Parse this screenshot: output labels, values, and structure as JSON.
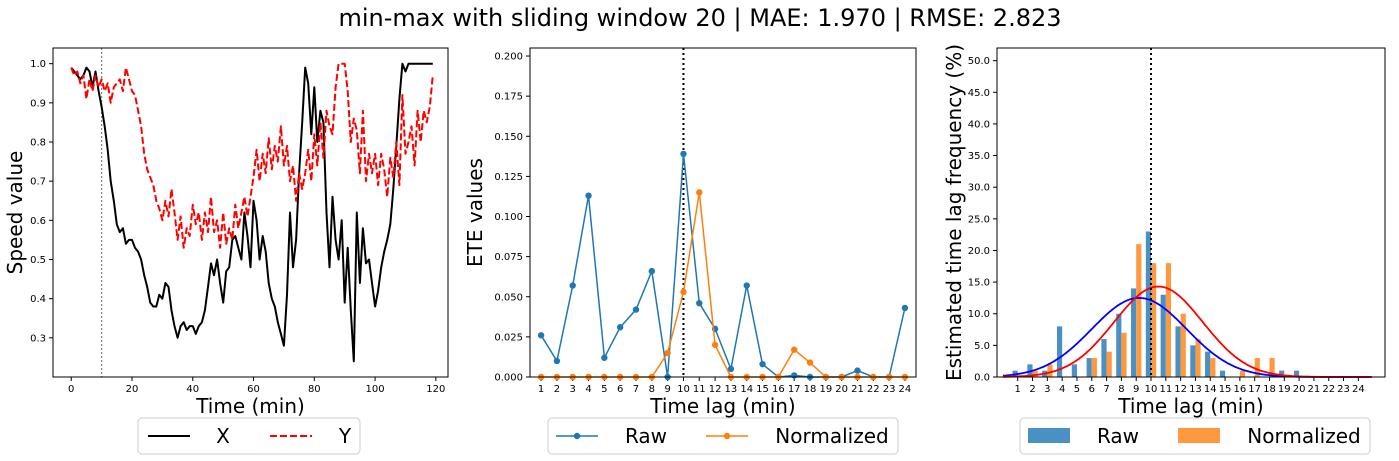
{
  "figure": {
    "suptitle": "min-max with sliding window 20 | MAE: 1.970 | RMSE: 2.823"
  },
  "chart_data": [
    {
      "type": "line",
      "xlabel": "Time (min)",
      "ylabel": "Speed value",
      "xlim": [
        -6,
        124
      ],
      "ylim": [
        0.2,
        1.04
      ],
      "xticks": [
        0,
        20,
        40,
        60,
        80,
        100,
        120
      ],
      "yticks": [
        0.3,
        0.4,
        0.5,
        0.6,
        0.7,
        0.8,
        0.9,
        1.0
      ],
      "xtick_labels": [
        "0",
        "20",
        "40",
        "60",
        "80",
        "100",
        "120"
      ],
      "ytick_labels": [
        "0.3",
        "0.4",
        "0.5",
        "0.6",
        "0.7",
        "0.8",
        "0.9",
        "1.0"
      ],
      "vline": 10,
      "legend": {
        "placement": "below",
        "entries": [
          "X",
          "Y"
        ]
      },
      "series": [
        {
          "name": "X",
          "color": "#000000",
          "dash": "solid",
          "x": [
            0,
            1,
            2,
            3,
            4,
            5,
            6,
            7,
            8,
            9,
            10,
            11,
            12,
            13,
            14,
            15,
            16,
            17,
            18,
            19,
            20,
            21,
            22,
            23,
            24,
            25,
            26,
            27,
            28,
            29,
            30,
            31,
            32,
            33,
            34,
            35,
            36,
            37,
            38,
            39,
            40,
            41,
            42,
            43,
            44,
            45,
            46,
            47,
            48,
            49,
            50,
            51,
            52,
            53,
            54,
            55,
            56,
            57,
            58,
            59,
            60,
            61,
            62,
            63,
            64,
            65,
            66,
            67,
            68,
            69,
            70,
            71,
            72,
            73,
            74,
            75,
            76,
            77,
            78,
            79,
            80,
            81,
            82,
            83,
            84,
            85,
            86,
            87,
            88,
            89,
            90,
            91,
            92,
            93,
            94,
            95,
            96,
            97,
            98,
            99,
            100,
            101,
            102,
            103,
            104,
            105,
            106,
            107,
            108,
            109,
            110,
            111,
            112,
            113,
            114,
            115,
            116,
            117,
            118,
            119
          ],
          "y": [
            0.99,
            0.98,
            0.97,
            0.96,
            0.97,
            0.99,
            0.98,
            0.94,
            0.98,
            0.93,
            0.89,
            0.84,
            0.78,
            0.7,
            0.65,
            0.59,
            0.57,
            0.58,
            0.54,
            0.55,
            0.55,
            0.53,
            0.52,
            0.5,
            0.46,
            0.43,
            0.39,
            0.38,
            0.38,
            0.41,
            0.4,
            0.44,
            0.43,
            0.37,
            0.33,
            0.3,
            0.33,
            0.34,
            0.32,
            0.33,
            0.33,
            0.31,
            0.33,
            0.34,
            0.37,
            0.43,
            0.49,
            0.46,
            0.5,
            0.44,
            0.39,
            0.47,
            0.48,
            0.55,
            0.56,
            0.53,
            0.5,
            0.62,
            0.56,
            0.48,
            0.65,
            0.6,
            0.5,
            0.56,
            0.52,
            0.44,
            0.4,
            0.38,
            0.34,
            0.31,
            0.28,
            0.41,
            0.62,
            0.48,
            0.55,
            0.72,
            0.85,
            0.99,
            0.95,
            0.82,
            0.94,
            0.8,
            0.88,
            0.85,
            0.62,
            0.48,
            0.66,
            0.55,
            0.5,
            0.6,
            0.39,
            0.53,
            0.37,
            0.24,
            0.62,
            0.44,
            0.58,
            0.49,
            0.5,
            0.44,
            0.38,
            0.42,
            0.48,
            0.52,
            0.55,
            0.59,
            0.68,
            0.79,
            0.91,
            1.0,
            0.98,
            1.0,
            1.0,
            1.0,
            1.0,
            1.0,
            1.0,
            1.0,
            1.0,
            1.0
          ]
        },
        {
          "name": "Y",
          "color": "#ff0000",
          "dash": "dashed",
          "x": [
            0,
            1,
            2,
            3,
            4,
            5,
            6,
            7,
            8,
            9,
            10,
            11,
            12,
            13,
            14,
            15,
            16,
            17,
            18,
            19,
            20,
            21,
            22,
            23,
            24,
            25,
            26,
            27,
            28,
            29,
            30,
            31,
            32,
            33,
            34,
            35,
            36,
            37,
            38,
            39,
            40,
            41,
            42,
            43,
            44,
            45,
            46,
            47,
            48,
            49,
            50,
            51,
            52,
            53,
            54,
            55,
            56,
            57,
            58,
            59,
            60,
            61,
            62,
            63,
            64,
            65,
            66,
            67,
            68,
            69,
            70,
            71,
            72,
            73,
            74,
            75,
            76,
            77,
            78,
            79,
            80,
            81,
            82,
            83,
            84,
            85,
            86,
            87,
            88,
            89,
            90,
            91,
            92,
            93,
            94,
            95,
            96,
            97,
            98,
            99,
            100,
            101,
            102,
            103,
            104,
            105,
            106,
            107,
            108,
            109,
            110,
            111,
            112,
            113,
            114,
            115,
            116,
            117,
            118,
            119
          ],
          "y": [
            0.99,
            0.97,
            0.98,
            0.95,
            0.97,
            0.91,
            0.96,
            0.93,
            0.97,
            0.94,
            0.96,
            0.93,
            0.95,
            0.9,
            0.94,
            0.95,
            0.96,
            0.93,
            0.99,
            0.96,
            0.93,
            0.92,
            0.88,
            0.84,
            0.77,
            0.73,
            0.71,
            0.69,
            0.65,
            0.63,
            0.6,
            0.65,
            0.61,
            0.68,
            0.62,
            0.55,
            0.61,
            0.53,
            0.58,
            0.56,
            0.64,
            0.59,
            0.62,
            0.55,
            0.62,
            0.57,
            0.66,
            0.57,
            0.6,
            0.53,
            0.62,
            0.54,
            0.58,
            0.55,
            0.64,
            0.58,
            0.62,
            0.66,
            0.61,
            0.66,
            0.71,
            0.78,
            0.7,
            0.77,
            0.72,
            0.81,
            0.73,
            0.79,
            0.75,
            0.84,
            0.74,
            0.79,
            0.7,
            0.74,
            0.65,
            0.72,
            0.68,
            0.72,
            0.78,
            0.7,
            0.82,
            0.74,
            0.85,
            0.76,
            0.88,
            0.84,
            0.82,
            0.94,
            1.0,
            1.0,
            1.0,
            0.93,
            0.8,
            0.86,
            0.83,
            0.72,
            0.88,
            0.7,
            0.77,
            0.72,
            0.77,
            0.69,
            0.77,
            0.73,
            0.66,
            0.76,
            0.71,
            0.8,
            0.69,
            0.92,
            0.77,
            0.8,
            0.84,
            0.74,
            0.88,
            0.8,
            0.88,
            0.85,
            0.89,
            0.97
          ]
        }
      ]
    },
    {
      "type": "line",
      "xlabel": "Time lag (min)",
      "ylabel": "ETE values",
      "xlim": [
        0.3,
        24.7
      ],
      "ylim": [
        0,
        0.205
      ],
      "yticks": [
        0,
        0.025,
        0.05,
        0.075,
        0.1,
        0.125,
        0.15,
        0.175,
        0.2
      ],
      "ytick_labels": [
        "0.000",
        "0.025",
        "0.050",
        "0.075",
        "0.100",
        "0.125",
        "0.150",
        "0.175",
        "0.200"
      ],
      "xtick_labels": [
        "1",
        "2",
        "3",
        "4",
        "5",
        "6",
        "7",
        "8",
        "9",
        "10",
        "11",
        "12",
        "13",
        "14",
        "15",
        "16",
        "17",
        "18",
        "19",
        "20",
        "21",
        "22",
        "23",
        "24"
      ],
      "vline": 10,
      "legend": {
        "placement": "below",
        "entries": [
          "Raw",
          "Normalized"
        ]
      },
      "x": [
        1,
        2,
        3,
        4,
        5,
        6,
        7,
        8,
        9,
        10,
        11,
        12,
        13,
        14,
        15,
        16,
        17,
        18,
        19,
        20,
        21,
        22,
        23,
        24
      ],
      "series": [
        {
          "name": "Raw",
          "color": "#1f77b4",
          "values": [
            0.026,
            0.01,
            0.057,
            0.113,
            0.012,
            0.031,
            0.042,
            0.066,
            0.0,
            0.139,
            0.046,
            0.03,
            0.005,
            0.057,
            0.008,
            0.0,
            0.001,
            0.0,
            0.0,
            0.0,
            0.004,
            0.0,
            0.0,
            0.043
          ]
        },
        {
          "name": "Normalized",
          "color": "#ff7f0e",
          "values": [
            0,
            0,
            0,
            0,
            0,
            0,
            0,
            0,
            0.015,
            0.053,
            0.115,
            0.02,
            0,
            0,
            0,
            0,
            0.017,
            0.009,
            0,
            0,
            0,
            0,
            0,
            0
          ]
        }
      ]
    },
    {
      "type": "bar",
      "xlabel": "Time lag (min)",
      "ylabel": "Estimated time lag frequency (%)",
      "xlim": [
        -0.4,
        25.8
      ],
      "ylim": [
        0,
        52
      ],
      "yticks": [
        0,
        5,
        10,
        15,
        20,
        25,
        30,
        35,
        40,
        45,
        50
      ],
      "ytick_labels": [
        "0.0",
        "5.0",
        "10.0",
        "15.0",
        "20.0",
        "25.0",
        "30.0",
        "35.0",
        "40.0",
        "45.0",
        "50.0"
      ],
      "categories": [
        "1",
        "2",
        "3",
        "4",
        "5",
        "6",
        "7",
        "8",
        "9",
        "10",
        "11",
        "12",
        "13",
        "14",
        "15",
        "16",
        "17",
        "18",
        "19",
        "20",
        "21",
        "22",
        "23",
        "24"
      ],
      "vline": 10,
      "legend": {
        "placement": "below",
        "entries": [
          "Raw",
          "Normalized"
        ]
      },
      "series": [
        {
          "name": "Raw",
          "color": "#4a90c4",
          "values": [
            1,
            2,
            1,
            8,
            2,
            3,
            6,
            10,
            14,
            23,
            13,
            8,
            5,
            4,
            1,
            0,
            0,
            0,
            1,
            1,
            0,
            0,
            0,
            0
          ]
        },
        {
          "name": "Normalized",
          "color": "#ff9940",
          "values": [
            0,
            1,
            2,
            0,
            0,
            3,
            4,
            7,
            21,
            18,
            18,
            10,
            6,
            3,
            0,
            1,
            3,
            3,
            0,
            0,
            0,
            0,
            0,
            0
          ]
        }
      ],
      "fits": [
        {
          "series": "Raw",
          "color": "#0000ff",
          "mean": 9.2,
          "std": 3.2,
          "peak": 12.5
        },
        {
          "series": "Normalized",
          "color": "#ff0000",
          "mean": 10.5,
          "std": 3.0,
          "peak": 14.3
        }
      ]
    }
  ]
}
